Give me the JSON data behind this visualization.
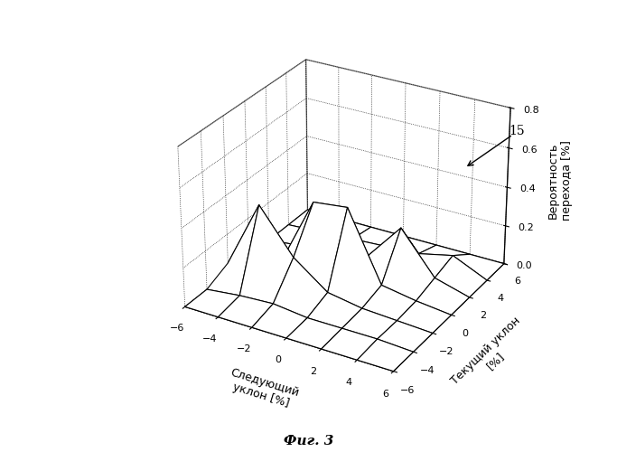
{
  "xlabel": "Следующий\nуклон [%]",
  "ylabel": "Текущий уклон\n[%]",
  "zlabel": "Вероятность\nперехода [%]",
  "fig_caption": "Фиг. 3",
  "annotation_label": "15",
  "x_values": [
    -6,
    -4,
    -2,
    0,
    2,
    4,
    6
  ],
  "y_values": [
    -6,
    -4,
    -2,
    0,
    2,
    4,
    6
  ],
  "zlim": [
    0,
    0.8
  ],
  "zticks": [
    0,
    0.2,
    0.4,
    0.6,
    0.8
  ],
  "surface_data": [
    [
      0.0,
      0.0,
      0.0,
      0.0,
      0.0,
      0.0,
      0.0
    ],
    [
      0.0,
      0.02,
      0.03,
      0.01,
      0.01,
      0.01,
      0.0
    ],
    [
      0.05,
      0.4,
      0.18,
      0.05,
      0.02,
      0.01,
      0.0
    ],
    [
      0.0,
      0.02,
      0.38,
      0.4,
      0.05,
      0.02,
      0.0
    ],
    [
      0.0,
      0.02,
      0.04,
      0.06,
      0.26,
      0.05,
      0.0
    ],
    [
      0.0,
      0.01,
      0.02,
      0.03,
      0.04,
      0.08,
      0.0
    ],
    [
      0.0,
      0.0,
      0.0,
      0.0,
      0.0,
      0.0,
      0.0
    ]
  ],
  "facecolor": "white",
  "edgecolor": "black",
  "linewidth": 0.8,
  "elev": 28,
  "azim": -60,
  "background_color": "white"
}
